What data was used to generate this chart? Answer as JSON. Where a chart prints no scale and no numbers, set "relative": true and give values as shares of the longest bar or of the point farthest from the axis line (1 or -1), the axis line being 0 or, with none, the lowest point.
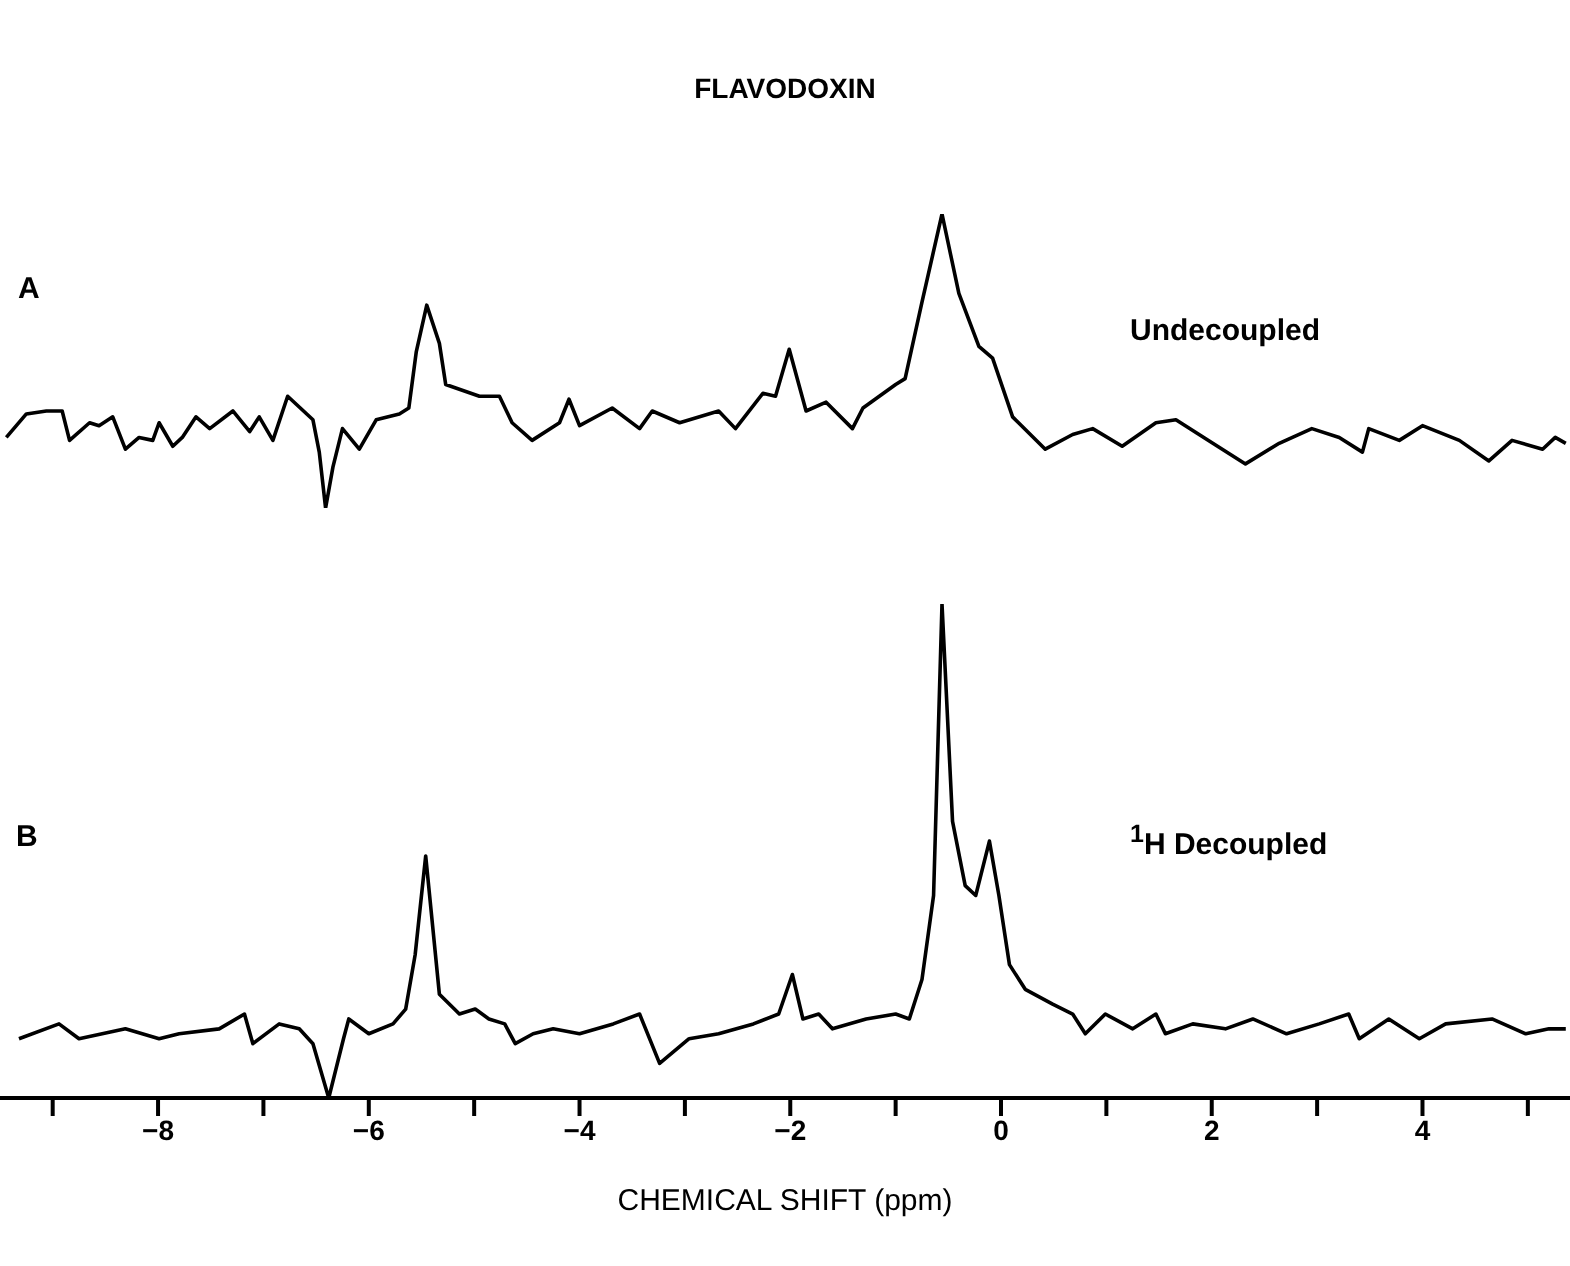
{
  "chart_data": [
    {
      "type": "line",
      "title": "FLAVODOXIN",
      "annotations": [
        "A",
        "Undecoupled"
      ],
      "relative": true,
      "tick_labels": false,
      "xlim": [
        -9.5,
        5.4
      ],
      "color": "#000000",
      "x": [
        -9.44,
        -9.25,
        -9.06,
        -8.91,
        -8.84,
        -8.65,
        -8.56,
        -8.43,
        -8.31,
        -8.18,
        -8.05,
        -7.99,
        -7.86,
        -7.77,
        -7.64,
        -7.51,
        -7.29,
        -7.13,
        -7.04,
        -6.91,
        -6.77,
        -6.53,
        -6.47,
        -6.41,
        -6.34,
        -6.25,
        -6.09,
        -5.93,
        -5.71,
        -5.62,
        -5.55,
        -5.45,
        -5.33,
        -5.27,
        -4.95,
        -4.76,
        -4.64,
        -4.45,
        -4.19,
        -4.1,
        -4.0,
        -3.69,
        -3.43,
        -3.31,
        -3.05,
        -2.68,
        -2.52,
        -2.26,
        -2.14,
        -2.01,
        -1.85,
        -1.66,
        -1.41,
        -1.31,
        -1.0,
        -0.91,
        -0.75,
        -0.56,
        -0.4,
        -0.21,
        -0.08,
        0.11,
        0.42,
        0.68,
        0.87,
        1.15,
        1.47,
        1.66,
        2.01,
        2.32,
        2.64,
        2.95,
        3.21,
        3.43,
        3.49,
        3.78,
        4.0,
        4.35,
        4.63,
        4.85,
        5.14,
        5.26,
        5.36
      ],
      "values": [
        0.24,
        0.32,
        0.33,
        0.33,
        0.23,
        0.29,
        0.28,
        0.31,
        0.2,
        0.24,
        0.23,
        0.29,
        0.21,
        0.24,
        0.31,
        0.27,
        0.33,
        0.26,
        0.31,
        0.23,
        0.38,
        0.3,
        0.19,
        0,
        0.14,
        0.27,
        0.2,
        0.3,
        0.32,
        0.34,
        0.53,
        0.69,
        0.56,
        0.42,
        0.38,
        0.38,
        0.29,
        0.23,
        0.29,
        0.37,
        0.28,
        0.34,
        0.27,
        0.33,
        0.29,
        0.33,
        0.27,
        0.39,
        0.38,
        0.54,
        0.33,
        0.36,
        0.27,
        0.34,
        0.42,
        0.44,
        0.7,
        1,
        0.73,
        0.55,
        0.51,
        0.31,
        0.2,
        0.25,
        0.27,
        0.21,
        0.29,
        0.3,
        0.22,
        0.15,
        0.22,
        0.27,
        0.24,
        0.19,
        0.27,
        0.23,
        0.28,
        0.23,
        0.16,
        0.23,
        0.2,
        0.24,
        0.22
      ]
    },
    {
      "type": "line",
      "annotations": [
        "B",
        "$^{1}$H Decoupled"
      ],
      "xlabel": "CHEMICAL SHIFT (ppm)",
      "relative": true,
      "tick_labels": "x",
      "xlim": [
        -9.5,
        5.4
      ],
      "color": "#000000",
      "xticks": [
        {
          "value": -9,
          "label": null
        },
        -8,
        {
          "value": -7,
          "label": null
        },
        -6,
        {
          "value": -5,
          "label": null
        },
        -4,
        {
          "value": -3,
          "label": null
        },
        -2,
        {
          "value": -1,
          "label": null
        },
        0,
        {
          "value": 1,
          "label": null
        },
        2,
        {
          "value": 3,
          "label": null
        },
        4,
        {
          "value": 5,
          "label": null
        }
      ],
      "x": [
        -9.32,
        -8.94,
        -8.75,
        -8.31,
        -7.99,
        -7.8,
        -7.42,
        -7.18,
        -7.1,
        -6.85,
        -6.66,
        -6.53,
        -6.38,
        -6.24,
        -6.19,
        -6.0,
        -5.77,
        -5.65,
        -5.56,
        -5.46,
        -5.33,
        -5.14,
        -4.99,
        -4.86,
        -4.71,
        -4.61,
        -4.44,
        -4.25,
        -4.0,
        -3.68,
        -3.43,
        -3.24,
        -2.96,
        -2.68,
        -2.35,
        -2.11,
        -1.98,
        -1.88,
        -1.73,
        -1.6,
        -1.28,
        -1.0,
        -0.87,
        -0.75,
        -0.64,
        -0.56,
        -0.46,
        -0.34,
        -0.24,
        -0.11,
        -0.02,
        0.08,
        0.23,
        0.49,
        0.68,
        0.8,
        0.99,
        1.25,
        1.47,
        1.56,
        1.82,
        2.13,
        2.39,
        2.71,
        3.02,
        3.3,
        3.4,
        3.68,
        3.97,
        4.22,
        4.66,
        4.98,
        5.2,
        5.36
      ],
      "values": [
        0.12,
        0.15,
        0.12,
        0.14,
        0.12,
        0.13,
        0.14,
        0.17,
        0.11,
        0.15,
        0.14,
        0.11,
        0,
        0.12,
        0.16,
        0.13,
        0.15,
        0.18,
        0.29,
        0.49,
        0.21,
        0.17,
        0.18,
        0.16,
        0.15,
        0.11,
        0.13,
        0.14,
        0.13,
        0.15,
        0.17,
        0.07,
        0.12,
        0.13,
        0.15,
        0.17,
        0.25,
        0.16,
        0.17,
        0.14,
        0.16,
        0.17,
        0.16,
        0.24,
        0.41,
        1,
        0.56,
        0.43,
        0.41,
        0.52,
        0.41,
        0.27,
        0.22,
        0.19,
        0.17,
        0.13,
        0.17,
        0.14,
        0.17,
        0.13,
        0.15,
        0.14,
        0.16,
        0.13,
        0.15,
        0.17,
        0.12,
        0.16,
        0.12,
        0.15,
        0.16,
        0.13,
        0.14,
        0.14
      ]
    }
  ]
}
